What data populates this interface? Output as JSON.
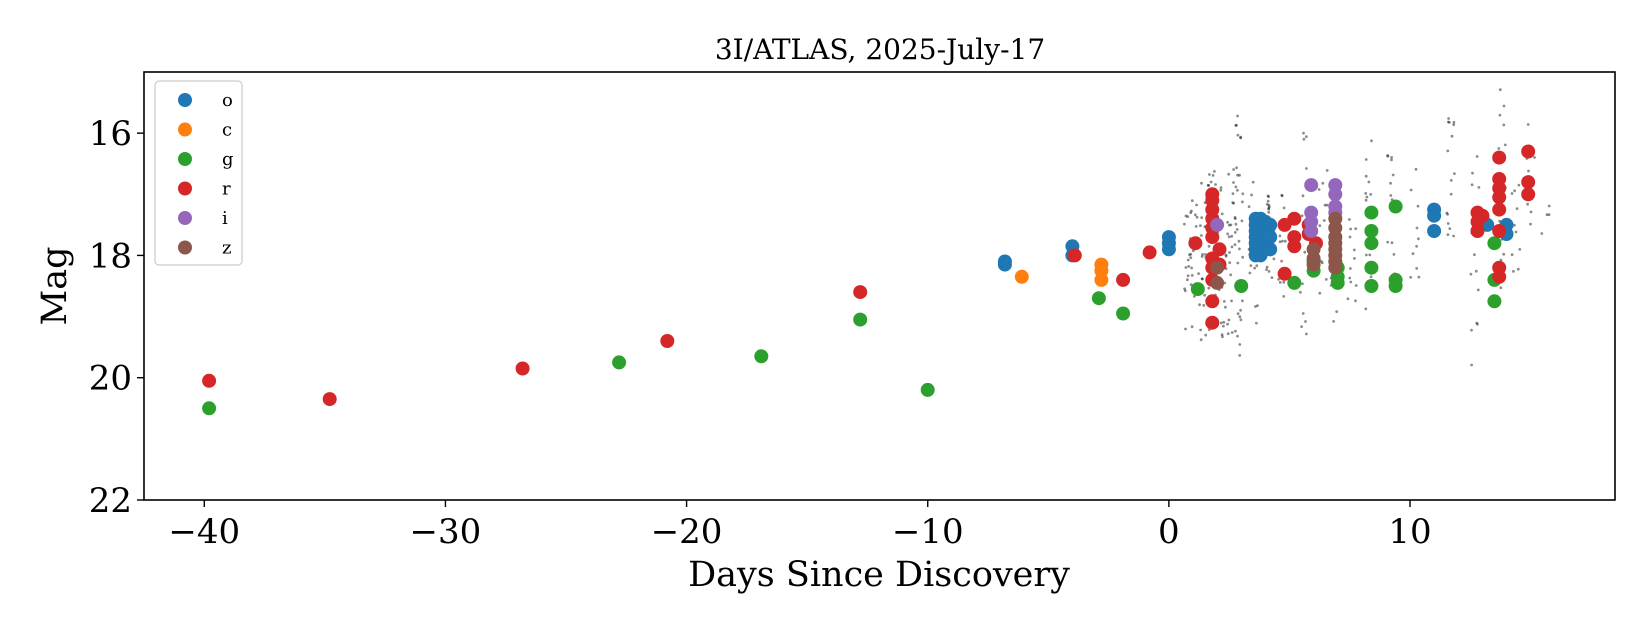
{
  "chart_data": {
    "type": "scatter",
    "title": "3I/ATLAS, 2025-July-17",
    "xlabel": "Days Since Discovery",
    "ylabel": "Mag",
    "xlim": [
      -42.5,
      18.5
    ],
    "ylim": [
      22,
      15
    ],
    "y_inverted": true,
    "xticks": [
      -40,
      -30,
      -20,
      -10,
      0,
      10
    ],
    "xtick_labels": [
      "−40",
      "−30",
      "−20",
      "−10",
      "0",
      "10"
    ],
    "yticks": [
      16,
      18,
      20,
      22
    ],
    "ytick_labels": [
      "16",
      "18",
      "20",
      "22"
    ],
    "grid": false,
    "legend_position": "top-left",
    "background_points": {
      "color": "#000000",
      "columns": [
        {
          "x": 0.8,
          "ymin": 17.1,
          "ymax": 19.3,
          "n": 14
        },
        {
          "x": 1.0,
          "ymin": 17.0,
          "ymax": 19.2,
          "n": 16
        },
        {
          "x": 1.4,
          "ymin": 16.8,
          "ymax": 19.5,
          "n": 22
        },
        {
          "x": 1.8,
          "ymin": 16.6,
          "ymax": 19.7,
          "n": 30
        },
        {
          "x": 2.2,
          "ymin": 16.8,
          "ymax": 19.4,
          "n": 22
        },
        {
          "x": 2.6,
          "ymin": 16.4,
          "ymax": 19.6,
          "n": 24
        },
        {
          "x": 2.9,
          "ymin": 15.5,
          "ymax": 19.8,
          "n": 30
        },
        {
          "x": 3.5,
          "ymin": 16.8,
          "ymax": 19.2,
          "n": 14
        },
        {
          "x": 4.2,
          "ymin": 17.0,
          "ymax": 19.0,
          "n": 16
        },
        {
          "x": 4.7,
          "ymin": 16.8,
          "ymax": 18.9,
          "n": 14
        },
        {
          "x": 5.6,
          "ymin": 16.0,
          "ymax": 19.4,
          "n": 16
        },
        {
          "x": 6.4,
          "ymin": 16.6,
          "ymax": 19.0,
          "n": 12
        },
        {
          "x": 6.9,
          "ymin": 16.8,
          "ymax": 19.2,
          "n": 14
        },
        {
          "x": 7.6,
          "ymin": 17.0,
          "ymax": 18.8,
          "n": 12
        },
        {
          "x": 8.3,
          "ymin": 16.0,
          "ymax": 18.9,
          "n": 16
        },
        {
          "x": 9.2,
          "ymin": 16.2,
          "ymax": 18.7,
          "n": 14
        },
        {
          "x": 10.2,
          "ymin": 16.4,
          "ymax": 18.4,
          "n": 10
        },
        {
          "x": 11.7,
          "ymin": 15.5,
          "ymax": 18.2,
          "n": 16
        },
        {
          "x": 12.7,
          "ymin": 16.0,
          "ymax": 19.9,
          "n": 16
        },
        {
          "x": 13.8,
          "ymin": 15.2,
          "ymax": 18.8,
          "n": 24
        },
        {
          "x": 14.4,
          "ymin": 16.8,
          "ymax": 18.3,
          "n": 10
        },
        {
          "x": 15.0,
          "ymin": 15.8,
          "ymax": 18.0,
          "n": 10
        },
        {
          "x": 15.6,
          "ymin": 17.0,
          "ymax": 17.7,
          "n": 4
        }
      ]
    },
    "series": [
      {
        "name": "o",
        "color": "#1f77b4",
        "points": [
          [
            -6.8,
            18.1
          ],
          [
            -6.8,
            18.15
          ],
          [
            -4.0,
            17.85
          ],
          [
            -4.0,
            18.0
          ],
          [
            0.0,
            17.7
          ],
          [
            0.0,
            17.8
          ],
          [
            0.0,
            17.9
          ],
          [
            3.6,
            17.4
          ],
          [
            3.6,
            17.5
          ],
          [
            3.6,
            17.6
          ],
          [
            3.6,
            17.7
          ],
          [
            3.6,
            17.8
          ],
          [
            3.6,
            17.9
          ],
          [
            3.6,
            18.0
          ],
          [
            3.8,
            17.4
          ],
          [
            3.8,
            17.55
          ],
          [
            3.8,
            17.7
          ],
          [
            3.8,
            17.85
          ],
          [
            3.8,
            18.0
          ],
          [
            4.0,
            17.45
          ],
          [
            4.0,
            17.6
          ],
          [
            4.0,
            17.75
          ],
          [
            4.0,
            17.9
          ],
          [
            4.2,
            17.5
          ],
          [
            4.2,
            17.7
          ],
          [
            4.2,
            17.9
          ],
          [
            11.0,
            17.25
          ],
          [
            11.0,
            17.35
          ],
          [
            11.0,
            17.6
          ],
          [
            13.0,
            17.4
          ],
          [
            13.2,
            17.5
          ],
          [
            14.0,
            17.5
          ],
          [
            14.0,
            17.65
          ]
        ]
      },
      {
        "name": "c",
        "color": "#ff7f0e",
        "points": [
          [
            -6.1,
            18.35
          ],
          [
            -2.8,
            18.15
          ],
          [
            -2.8,
            18.25
          ],
          [
            -2.8,
            18.4
          ]
        ]
      },
      {
        "name": "g",
        "color": "#2ca02c",
        "points": [
          [
            -39.8,
            20.5
          ],
          [
            -22.8,
            19.75
          ],
          [
            -16.9,
            19.65
          ],
          [
            -12.8,
            19.05
          ],
          [
            -10.0,
            20.2
          ],
          [
            -2.9,
            18.7
          ],
          [
            -1.9,
            18.95
          ],
          [
            1.2,
            18.55
          ],
          [
            3.0,
            18.5
          ],
          [
            5.2,
            18.45
          ],
          [
            6.0,
            18.1
          ],
          [
            6.0,
            18.25
          ],
          [
            7.0,
            18.2
          ],
          [
            7.0,
            18.35
          ],
          [
            7.0,
            18.45
          ],
          [
            8.4,
            17.3
          ],
          [
            8.4,
            17.6
          ],
          [
            8.4,
            17.8
          ],
          [
            8.4,
            18.2
          ],
          [
            8.4,
            18.5
          ],
          [
            9.4,
            17.2
          ],
          [
            9.4,
            18.4
          ],
          [
            9.4,
            18.5
          ],
          [
            13.5,
            17.8
          ],
          [
            13.5,
            18.4
          ],
          [
            13.5,
            18.75
          ]
        ]
      },
      {
        "name": "r",
        "color": "#d62728",
        "points": [
          [
            -39.8,
            20.05
          ],
          [
            -34.8,
            20.35
          ],
          [
            -26.8,
            19.85
          ],
          [
            -20.8,
            19.4
          ],
          [
            -12.8,
            18.6
          ],
          [
            -3.9,
            18.0
          ],
          [
            -1.9,
            18.4
          ],
          [
            -0.8,
            17.95
          ],
          [
            1.1,
            17.8
          ],
          [
            1.8,
            17.0
          ],
          [
            1.8,
            17.1
          ],
          [
            1.8,
            17.25
          ],
          [
            1.8,
            17.4
          ],
          [
            1.8,
            17.55
          ],
          [
            1.8,
            17.7
          ],
          [
            1.8,
            18.05
          ],
          [
            1.8,
            18.2
          ],
          [
            1.8,
            18.4
          ],
          [
            1.8,
            18.75
          ],
          [
            1.8,
            19.1
          ],
          [
            2.1,
            17.9
          ],
          [
            2.1,
            18.15
          ],
          [
            4.8,
            18.3
          ],
          [
            4.8,
            17.5
          ],
          [
            5.2,
            17.4
          ],
          [
            5.2,
            17.7
          ],
          [
            5.2,
            17.85
          ],
          [
            5.8,
            17.5
          ],
          [
            5.8,
            17.65
          ],
          [
            6.1,
            17.8
          ],
          [
            12.8,
            17.3
          ],
          [
            12.8,
            17.45
          ],
          [
            12.8,
            17.6
          ],
          [
            13.0,
            17.35
          ],
          [
            13.7,
            16.4
          ],
          [
            13.7,
            16.75
          ],
          [
            13.7,
            16.9
          ],
          [
            13.7,
            17.05
          ],
          [
            13.7,
            17.25
          ],
          [
            13.7,
            17.6
          ],
          [
            13.7,
            18.2
          ],
          [
            13.7,
            18.35
          ],
          [
            14.9,
            16.3
          ],
          [
            14.9,
            16.8
          ],
          [
            14.9,
            17.0
          ]
        ]
      },
      {
        "name": "i",
        "color": "#9467bd",
        "points": [
          [
            2.0,
            17.5
          ],
          [
            5.9,
            16.85
          ],
          [
            5.9,
            17.3
          ],
          [
            5.9,
            17.45
          ],
          [
            5.9,
            17.6
          ],
          [
            6.9,
            16.85
          ],
          [
            6.9,
            17.0
          ],
          [
            6.9,
            17.2
          ],
          [
            6.9,
            17.3
          ]
        ]
      },
      {
        "name": "z",
        "color": "#8c564b",
        "points": [
          [
            2.0,
            18.2
          ],
          [
            2.0,
            18.45
          ],
          [
            6.0,
            17.9
          ],
          [
            6.0,
            18.05
          ],
          [
            6.0,
            18.15
          ],
          [
            6.9,
            17.4
          ],
          [
            6.9,
            17.55
          ],
          [
            6.9,
            17.7
          ],
          [
            6.9,
            17.8
          ],
          [
            6.9,
            17.9
          ],
          [
            6.9,
            18.0
          ],
          [
            6.9,
            18.1
          ],
          [
            6.9,
            18.2
          ]
        ]
      }
    ]
  }
}
